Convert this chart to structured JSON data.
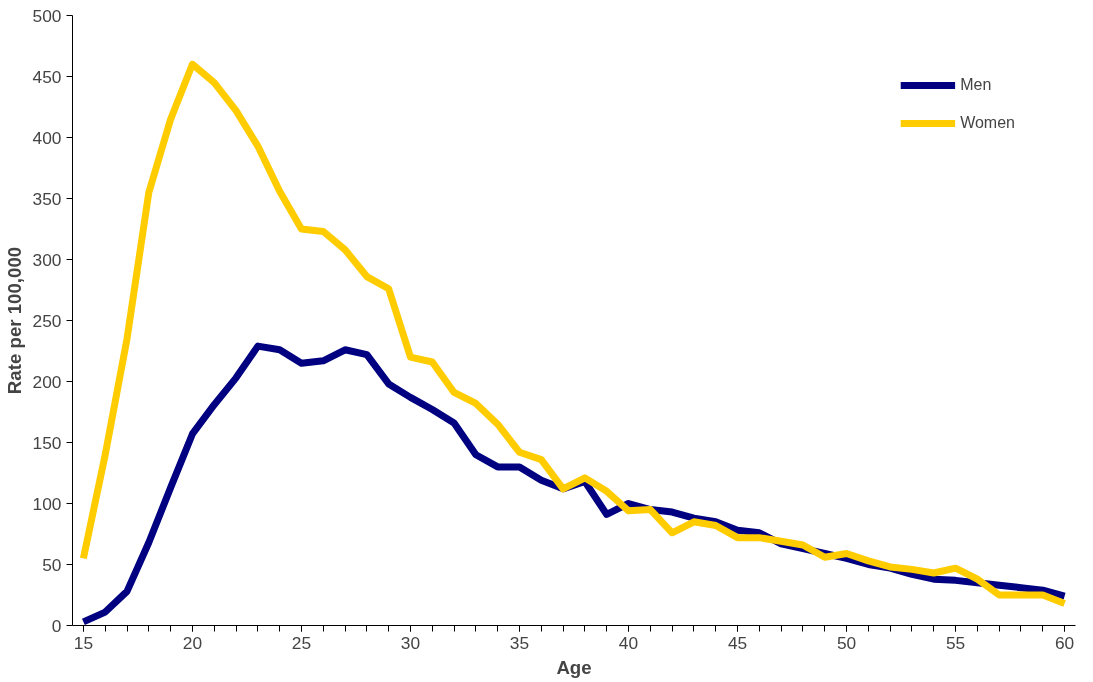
{
  "chart_data": {
    "type": "line",
    "xlabel": "Age",
    "ylabel": "Rate per 100,000",
    "x": [
      15,
      16,
      17,
      18,
      19,
      20,
      21,
      22,
      23,
      24,
      25,
      26,
      27,
      28,
      29,
      30,
      31,
      32,
      33,
      34,
      35,
      36,
      37,
      38,
      39,
      40,
      41,
      42,
      43,
      44,
      45,
      46,
      47,
      48,
      49,
      50,
      51,
      52,
      53,
      54,
      55,
      56,
      57,
      58,
      59,
      60
    ],
    "series": [
      {
        "name": "Men",
        "color": "#000080",
        "values": [
          3,
          11,
          28,
          68,
          113,
          157,
          181,
          203,
          229,
          226,
          215,
          217,
          226,
          222,
          198,
          187,
          177,
          166,
          140,
          130,
          130,
          119,
          112,
          118,
          91,
          100,
          95,
          93,
          88,
          85,
          78,
          76,
          67,
          63,
          59,
          55,
          50,
          47,
          42,
          38,
          37,
          35,
          33,
          31,
          29,
          24
        ]
      },
      {
        "name": "Women",
        "color": "#ffcc00",
        "values": [
          55,
          140,
          235,
          355,
          415,
          460,
          445,
          422,
          393,
          356,
          325,
          323,
          308,
          286,
          276,
          220,
          216,
          191,
          182,
          165,
          142,
          136,
          112,
          121,
          110,
          94,
          95,
          76,
          85,
          82,
          72,
          72,
          69,
          66,
          56,
          59,
          53,
          48,
          46,
          43,
          47,
          38,
          25,
          25,
          25,
          18
        ]
      }
    ],
    "xlim": [
      14.5,
      60.5
    ],
    "ylim": [
      0,
      500
    ],
    "xticks": [
      15,
      20,
      25,
      30,
      35,
      40,
      45,
      50,
      55,
      60
    ],
    "yticks": [
      0,
      50,
      100,
      150,
      200,
      250,
      300,
      350,
      400,
      450,
      500
    ],
    "grid": false,
    "legend": "top right",
    "marker": "none",
    "line_style": "solid"
  }
}
